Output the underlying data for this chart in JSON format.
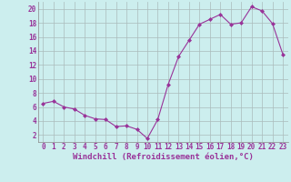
{
  "x": [
    0,
    1,
    2,
    3,
    4,
    5,
    6,
    7,
    8,
    9,
    10,
    11,
    12,
    13,
    14,
    15,
    16,
    17,
    18,
    19,
    20,
    21,
    22,
    23
  ],
  "y": [
    6.5,
    6.8,
    6.0,
    5.7,
    4.8,
    4.3,
    4.2,
    3.2,
    3.3,
    2.8,
    1.5,
    4.2,
    9.2,
    13.2,
    15.5,
    17.8,
    18.5,
    19.2,
    17.8,
    18.0,
    20.3,
    19.7,
    17.9,
    13.5
  ],
  "line_color": "#993399",
  "marker": "D",
  "marker_size": 2,
  "bg_color": "#cceeee",
  "grid_color": "#aabbbb",
  "xlabel": "Windchill (Refroidissement éolien,°C)",
  "yticks": [
    2,
    4,
    6,
    8,
    10,
    12,
    14,
    16,
    18,
    20
  ],
  "ylim": [
    1.0,
    21.0
  ],
  "xlim": [
    -0.5,
    23.5
  ],
  "text_color": "#993399",
  "xlabel_fontsize": 6.5,
  "tick_fontsize": 5.5,
  "linewidth": 0.8
}
